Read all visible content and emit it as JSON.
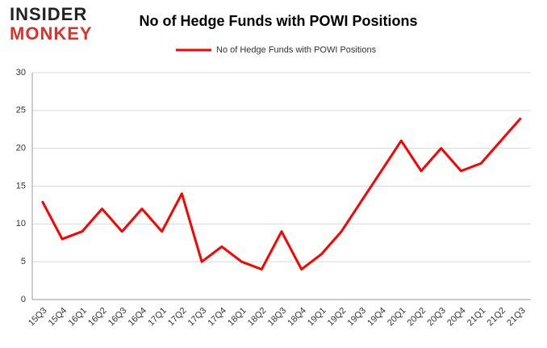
{
  "logo": {
    "line1": "INSIDER",
    "line2": "MONKEY"
  },
  "chart_data": {
    "type": "line",
    "title": "No of Hedge Funds with POWI Positions",
    "categories": [
      "15Q3",
      "15Q4",
      "16Q1",
      "16Q2",
      "16Q3",
      "16Q4",
      "17Q1",
      "17Q2",
      "17Q3",
      "17Q4",
      "18Q1",
      "18Q2",
      "18Q3",
      "18Q4",
      "19Q1",
      "19Q2",
      "19Q3",
      "19Q4",
      "20Q1",
      "20Q2",
      "20Q3",
      "20Q4",
      "21Q1",
      "21Q2",
      "21Q3"
    ],
    "series": [
      {
        "name": "No of Hedge Funds with POWI Positions",
        "color": "#ff0000",
        "values": [
          13,
          8,
          9,
          12,
          9,
          12,
          9,
          14,
          5,
          7,
          5,
          4,
          9,
          4,
          6,
          9,
          13,
          17,
          21,
          17,
          20,
          17,
          18,
          21,
          24
        ]
      }
    ],
    "ylim": [
      0,
      30
    ],
    "yticks": [
      0,
      5,
      10,
      15,
      20,
      25,
      30
    ],
    "grid": true,
    "legend": "top"
  }
}
